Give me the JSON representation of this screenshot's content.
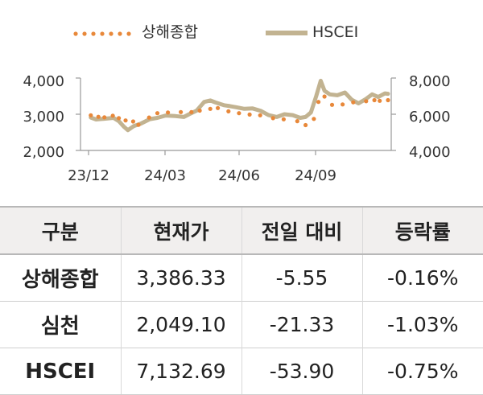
{
  "chart_data": {
    "type": "line",
    "x_tick_labels": [
      "23/12",
      "24/03",
      "24/06",
      "24/09"
    ],
    "y_left": {
      "ylim": [
        2000,
        4000
      ],
      "tick_labels": [
        "4,000",
        "3,000",
        "2,000"
      ]
    },
    "y_right": {
      "ylim": [
        4000,
        8000
      ],
      "tick_labels": [
        "8,000",
        "6,000",
        "4,000"
      ]
    },
    "series": [
      {
        "name": "상해종합",
        "axis": "left",
        "style": "dotted",
        "color": "#e8883a",
        "points": [
          [
            "2023-12-04",
            2970
          ],
          [
            "2023-12-14",
            2930
          ],
          [
            "2023-12-22",
            2915
          ],
          [
            "2024-01-02",
            2960
          ],
          [
            "2024-01-10",
            2890
          ],
          [
            "2024-01-19",
            2830
          ],
          [
            "2024-01-29",
            2800
          ],
          [
            "2024-02-05",
            2710
          ],
          [
            "2024-02-19",
            2910
          ],
          [
            "2024-03-01",
            3030
          ],
          [
            "2024-03-15",
            3050
          ],
          [
            "2024-04-01",
            3060
          ],
          [
            "2024-04-15",
            3060
          ],
          [
            "2024-04-26",
            3100
          ],
          [
            "2024-05-10",
            3150
          ],
          [
            "2024-05-20",
            3170
          ],
          [
            "2024-06-03",
            3080
          ],
          [
            "2024-06-17",
            3030
          ],
          [
            "2024-07-01",
            2990
          ],
          [
            "2024-07-15",
            2970
          ],
          [
            "2024-08-01",
            2890
          ],
          [
            "2024-08-15",
            2860
          ],
          [
            "2024-09-02",
            2810
          ],
          [
            "2024-09-13",
            2700
          ],
          [
            "2024-09-24",
            2870
          ],
          [
            "2024-09-30",
            3340
          ],
          [
            "2024-10-08",
            3490
          ],
          [
            "2024-10-18",
            3260
          ],
          [
            "2024-11-01",
            3270
          ],
          [
            "2024-11-15",
            3330
          ],
          [
            "2024-12-02",
            3360
          ],
          [
            "2024-12-13",
            3390
          ],
          [
            "2024-12-20",
            3370
          ],
          [
            "2024-12-31",
            3390
          ]
        ]
      },
      {
        "name": "HSCEI",
        "axis": "right",
        "style": "solid",
        "color": "#c2b391",
        "points": [
          [
            "2023-12-04",
            5820
          ],
          [
            "2023-12-11",
            5710
          ],
          [
            "2023-12-22",
            5750
          ],
          [
            "2024-01-03",
            5800
          ],
          [
            "2024-01-10",
            5620
          ],
          [
            "2024-01-17",
            5300
          ],
          [
            "2024-01-22",
            5120
          ],
          [
            "2024-01-30",
            5350
          ],
          [
            "2024-02-08",
            5480
          ],
          [
            "2024-02-20",
            5730
          ],
          [
            "2024-03-01",
            5800
          ],
          [
            "2024-03-12",
            5930
          ],
          [
            "2024-03-25",
            5900
          ],
          [
            "2024-04-05",
            5850
          ],
          [
            "2024-04-12",
            6000
          ],
          [
            "2024-04-22",
            6200
          ],
          [
            "2024-05-02",
            6680
          ],
          [
            "2024-05-10",
            6760
          ],
          [
            "2024-05-17",
            6650
          ],
          [
            "2024-05-28",
            6500
          ],
          [
            "2024-06-05",
            6450
          ],
          [
            "2024-06-14",
            6380
          ],
          [
            "2024-06-24",
            6300
          ],
          [
            "2024-07-05",
            6320
          ],
          [
            "2024-07-16",
            6180
          ],
          [
            "2024-07-26",
            5950
          ],
          [
            "2024-08-06",
            5850
          ],
          [
            "2024-08-16",
            6000
          ],
          [
            "2024-08-27",
            5950
          ],
          [
            "2024-09-06",
            5800
          ],
          [
            "2024-09-13",
            5850
          ],
          [
            "2024-09-20",
            6100
          ],
          [
            "2024-09-27",
            7000
          ],
          [
            "2024-10-03",
            7850
          ],
          [
            "2024-10-08",
            7300
          ],
          [
            "2024-10-15",
            7100
          ],
          [
            "2024-10-25",
            7050
          ],
          [
            "2024-11-04",
            7200
          ],
          [
            "2024-11-13",
            6800
          ],
          [
            "2024-11-22",
            6600
          ],
          [
            "2024-12-02",
            6850
          ],
          [
            "2024-12-10",
            7100
          ],
          [
            "2024-12-18",
            6950
          ],
          [
            "2024-12-27",
            7150
          ],
          [
            "2024-12-31",
            7130
          ]
        ]
      }
    ]
  },
  "table": {
    "headers": [
      "구분",
      "현재가",
      "전일 대비",
      "등락률"
    ],
    "rows": [
      {
        "name": "상해종합",
        "price": "3,386.33",
        "change": "-5.55",
        "pct": "-0.16%"
      },
      {
        "name": "심천",
        "price": "2,049.10",
        "change": "-21.33",
        "pct": "-1.03%"
      },
      {
        "name": "HSCEI",
        "price": "7,132.69",
        "change": "-53.90",
        "pct": "-0.75%"
      }
    ]
  }
}
